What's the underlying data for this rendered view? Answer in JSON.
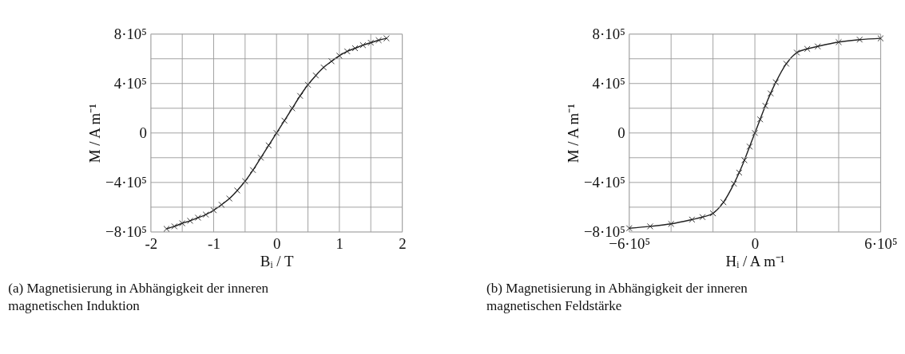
{
  "chart_data": [
    {
      "type": "line",
      "marker": "cross",
      "grid": true,
      "xlabel": "Bᵢ / T",
      "ylabel": "M / A m⁻¹",
      "x": [
        -1.75,
        -1.625,
        -1.5,
        -1.375,
        -1.25,
        -1.125,
        -1,
        -0.875,
        -0.75,
        -0.625,
        -0.5,
        -0.375,
        -0.25,
        -0.125,
        0,
        0.125,
        0.25,
        0.375,
        0.5,
        0.625,
        0.75,
        0.875,
        1,
        1.125,
        1.25,
        1.375,
        1.5,
        1.625,
        1.75
      ],
      "series": [
        {
          "color": "#222222",
          "values": [
            -775000,
            -755000,
            -730000,
            -710000,
            -685000,
            -660000,
            -625000,
            -580000,
            -530000,
            -465000,
            -390000,
            -300000,
            -200000,
            -100000,
            0,
            100000,
            200000,
            300000,
            390000,
            465000,
            530000,
            580000,
            625000,
            660000,
            685000,
            710000,
            730000,
            750000,
            765000
          ]
        }
      ],
      "xlim": [
        -2,
        2
      ],
      "xticks": [
        -2,
        {
          "value": -1.5,
          "label": null
        },
        -1,
        {
          "value": -0.5,
          "label": null
        },
        0,
        {
          "value": 0.5,
          "label": null
        },
        1,
        {
          "value": 1.5,
          "label": null
        },
        2
      ],
      "ylim": [
        -800000,
        800000
      ],
      "yticks": [
        {
          "value": -800000,
          "label": "−8·10⁵"
        },
        {
          "value": -600000,
          "label": null
        },
        {
          "value": -400000,
          "label": "−4·10⁵"
        },
        {
          "value": -200000,
          "label": null
        },
        0,
        {
          "value": 200000,
          "label": null
        },
        {
          "value": 400000,
          "label": "4·10⁵"
        },
        {
          "value": 600000,
          "label": null
        },
        {
          "value": 800000,
          "label": "8·10⁵"
        }
      ],
      "annotations": [
        "(a) Magnetisierung in Abhängigkeit der inneren magnetischen Induktion"
      ]
    },
    {
      "type": "line",
      "marker": "cross",
      "grid": true,
      "xlabel": "Hᵢ / A m⁻¹",
      "ylabel": "M / A m⁻¹",
      "x": [
        -600000,
        -500000,
        -400000,
        -300000,
        -250000,
        -200000,
        -150000,
        -100000,
        -75000,
        -50000,
        -25000,
        0,
        25000,
        50000,
        75000,
        100000,
        150000,
        200000,
        250000,
        300000,
        400000,
        500000,
        600000
      ],
      "series": [
        {
          "color": "#222222",
          "values": [
            -770000,
            -755000,
            -735000,
            -700000,
            -680000,
            -650000,
            -560000,
            -410000,
            -320000,
            -220000,
            -110000,
            0,
            110000,
            220000,
            320000,
            410000,
            560000,
            650000,
            680000,
            700000,
            735000,
            755000,
            765000
          ]
        }
      ],
      "xlim": [
        -600000,
        600000
      ],
      "xticks": [
        {
          "value": -600000,
          "label": "−6·10⁵"
        },
        {
          "value": -400000,
          "label": null
        },
        {
          "value": -200000,
          "label": null
        },
        0,
        {
          "value": 200000,
          "label": null
        },
        {
          "value": 400000,
          "label": null
        },
        {
          "value": 600000,
          "label": "6·10⁵"
        }
      ],
      "ylim": [
        -800000,
        800000
      ],
      "yticks": [
        {
          "value": -800000,
          "label": "−8·10⁵"
        },
        {
          "value": -600000,
          "label": null
        },
        {
          "value": -400000,
          "label": "−4·10⁵"
        },
        {
          "value": -200000,
          "label": null
        },
        0,
        {
          "value": 200000,
          "label": null
        },
        {
          "value": 400000,
          "label": "4·10⁵"
        },
        {
          "value": 600000,
          "label": null
        },
        {
          "value": 800000,
          "label": "8·10⁵"
        }
      ],
      "annotations": [
        "(b) Magnetisierung in Abhängigkeit der inneren magnetischen Feldstärke"
      ]
    }
  ]
}
